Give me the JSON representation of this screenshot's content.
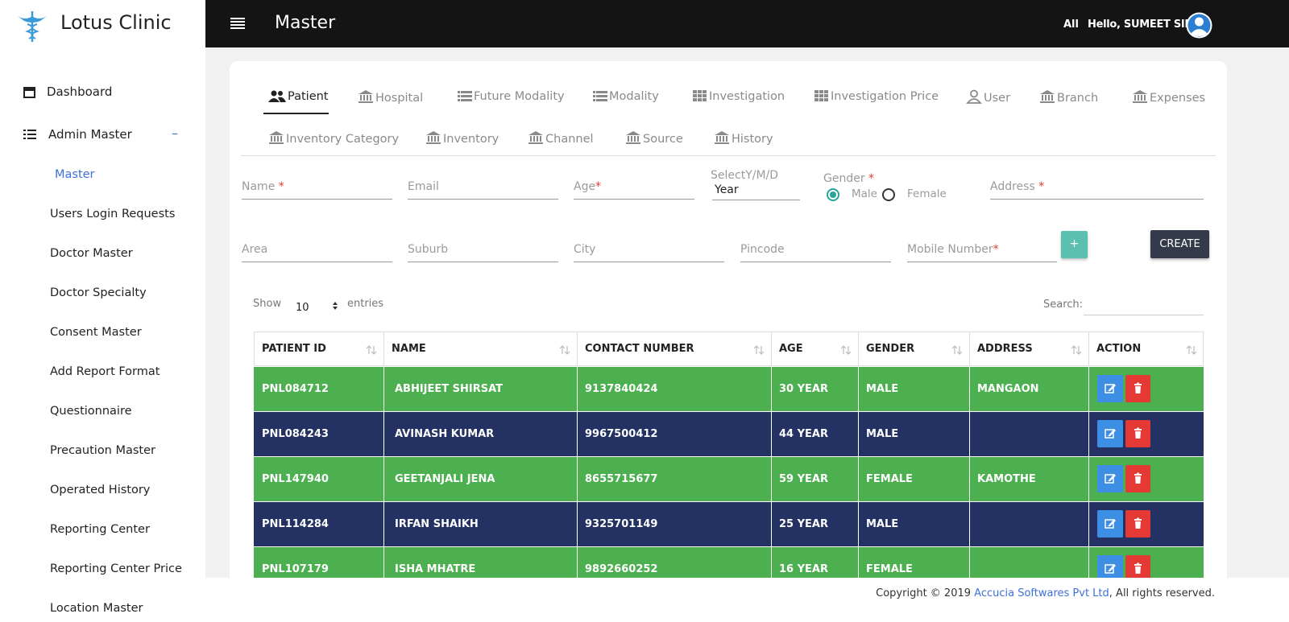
{
  "sidebar": {
    "brand": "Lotus Clinic",
    "dashboard": "Dashboard",
    "admin_master": "Admin Master",
    "toggle": "–",
    "submenu": [
      "Master",
      "Users Login Requests",
      "Doctor Master",
      "Doctor Specialty",
      "Consent Master",
      "Add Report Format",
      "Questionnaire",
      "Precaution Master",
      "Operated History",
      "Reporting Center",
      "Reporting Center Price",
      "Location Master"
    ]
  },
  "header": {
    "title": "Master",
    "filter": "All",
    "greeting": "Hello, SUMEET SIR"
  },
  "tabs": [
    [
      "Patient",
      "Hospital",
      "Future Modality",
      "Modality",
      "Investigation",
      "Investigation Price",
      "User",
      "Branch",
      "Expenses"
    ],
    [
      "Inventory Category",
      "Inventory",
      "Channel",
      "Source",
      "History"
    ]
  ],
  "form": {
    "row1": [
      {
        "label": "Name",
        "mark": "*"
      },
      {
        "label": "Email"
      },
      {
        "label": "Age",
        "mark": "*"
      },
      {
        "label": "SelectY/M/D",
        "value": "Year"
      },
      {
        "label": "Gender",
        "mark": "*",
        "options": [
          "Male",
          "Female"
        ]
      },
      {
        "label": "Address",
        "mark": "*"
      }
    ],
    "row2": [
      {
        "label": "Area"
      },
      {
        "label": "Suburb"
      },
      {
        "label": "City"
      },
      {
        "label": "Pincode"
      },
      {
        "label": "Mobile Number",
        "mark": "*"
      }
    ],
    "add_button": "+",
    "create_button": "CREATE"
  },
  "table_controls": {
    "show": "Show",
    "entries_value": "10",
    "entries": "entries",
    "search": "Search:"
  },
  "table": {
    "columns": [
      "PATIENT ID",
      "NAME",
      "CONTACT NUMBER",
      "AGE",
      "GENDER",
      "ADDRESS",
      "ACTION"
    ],
    "rows": [
      [
        "PNL084712",
        "ABHIJEET SHIRSAT",
        "9137840424",
        "30 YEAR",
        "MALE",
        "MANGAON"
      ],
      [
        "PNL084243",
        "AVINASH KUMAR",
        "9967500412",
        "44 YEAR",
        "MALE",
        ""
      ],
      [
        "PNL147940",
        "GEETANJALI JENA",
        "8655715677",
        "59 YEAR",
        "FEMALE",
        "KAMOTHE"
      ],
      [
        "PNL114284",
        "IRFAN SHAIKH",
        "9325701149",
        "25 YEAR",
        "MALE",
        ""
      ],
      [
        "PNL107179",
        "ISHA MHATRE",
        "9892660252",
        "16 YEAR",
        "FEMALE",
        ""
      ]
    ]
  },
  "footer": {
    "copyright": "Copyright © 2019",
    "company": "Accucia Softwares Pvt Ltd",
    "suffix": ", All rights reserved."
  }
}
